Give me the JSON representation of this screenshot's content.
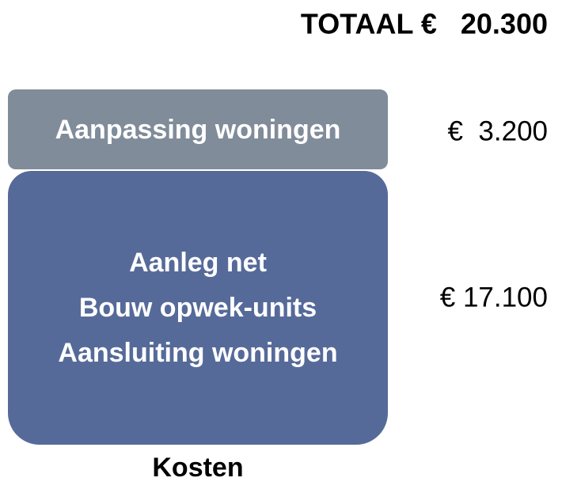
{
  "header": {
    "total": "TOTAAL €   20.300"
  },
  "blocks": [
    {
      "lines": [
        "Aanpassing woningen"
      ],
      "amount": "€  3.200"
    },
    {
      "lines": [
        "Aanleg net",
        "Bouw opwek-units",
        "Aansluiting woningen"
      ],
      "amount": "€ 17.100"
    }
  ],
  "footer": {
    "label": "Kosten"
  }
}
